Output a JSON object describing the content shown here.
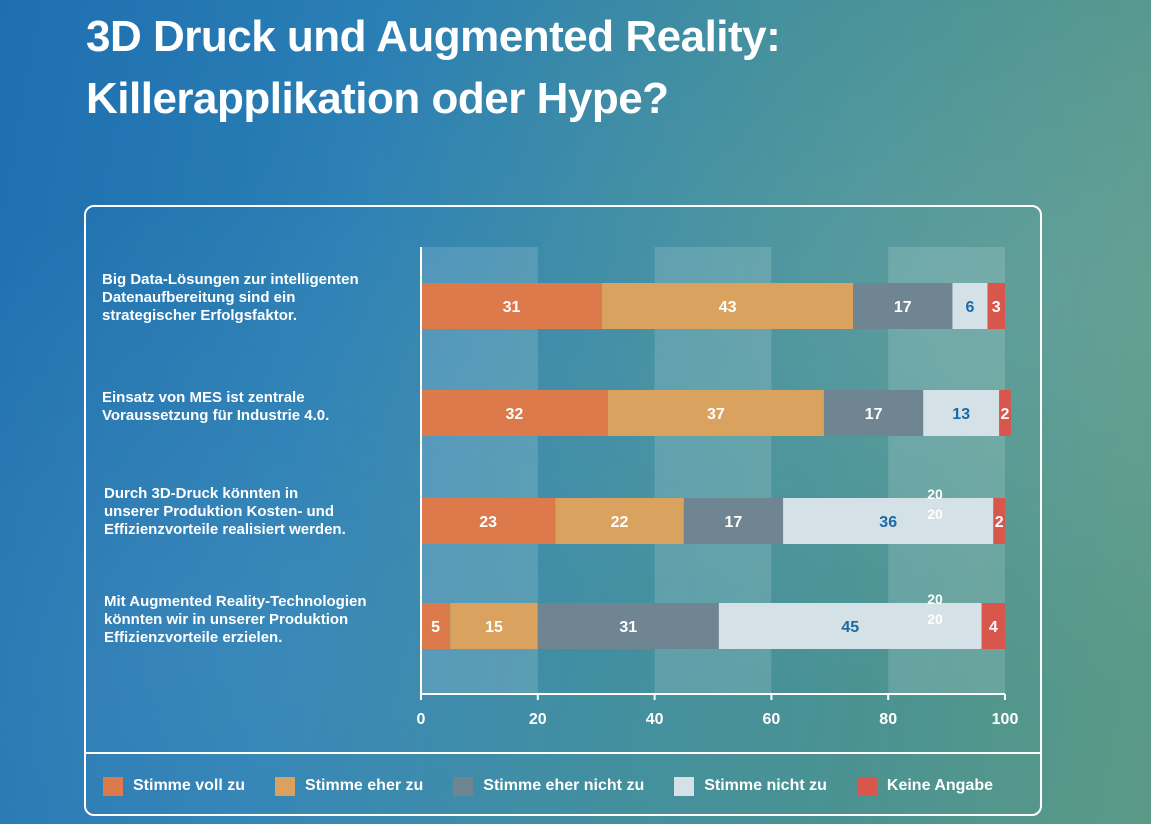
{
  "title_line1": "3D Druck und Augmented Reality:",
  "title_line2": "Killerapplikation oder Hype?",
  "questions": [
    {
      "line1": "Big Data-Lösungen zur intelligenten",
      "line2": "Datenaufbereitung sind ein",
      "line3": "strategischer Erfolgsfaktor."
    },
    {
      "line1": "Einsatz von MES ist zentrale",
      "line2": "Voraussetzung für Industrie 4.0.",
      "line3": ""
    },
    {
      "line1": "Durch 3D-Druck könnten in",
      "line2": "unserer Produktion Kosten- und",
      "line3": "Effizienzvorteile realisiert werden."
    },
    {
      "line1": "Mit Augmented Reality-Technologien",
      "line2": "könnten wir in unserer Produktion",
      "line3": "Effizienzvorteile erzielen."
    }
  ],
  "chart_data": {
    "type": "bar",
    "orientation": "horizontal",
    "stacked": true,
    "categories": [
      "Big Data-Lösungen zur intelligenten Datenaufbereitung sind ein strategischer Erfolgsfaktor.",
      "Einsatz von MES ist zentrale Voraussetzung für Industrie 4.0.",
      "Durch 3D-Druck könnten in unserer Produktion Kosten- und Effizienzvorteile realisiert werden.",
      "Mit Augmented Reality-Technologien könnten wir in unserer Produktion Effizienzvorteile erzielen."
    ],
    "series": [
      {
        "name": "Stimme voll zu",
        "values": [
          31,
          32,
          23,
          5
        ],
        "color": "#dc7a4c",
        "label_color": "#ffffff"
      },
      {
        "name": "Stimme eher zu",
        "values": [
          43,
          37,
          22,
          15
        ],
        "color": "#d9a25e",
        "label_color": "#ffffff"
      },
      {
        "name": "Stimme eher nicht zu",
        "values": [
          17,
          17,
          17,
          31
        ],
        "color": "#6f8592",
        "label_color": "#ffffff"
      },
      {
        "name": "Stimme nicht zu",
        "values": [
          6,
          13,
          36,
          45
        ],
        "color": "#d4e1e6",
        "label_color": "#1a6aa8"
      },
      {
        "name": "Keine Angabe",
        "values": [
          3,
          2,
          2,
          4
        ],
        "color": "#d9564c",
        "label_color": "#ffffff"
      }
    ],
    "stray_labels": [
      {
        "category_index": 2,
        "texts": [
          "20",
          "20"
        ]
      },
      {
        "category_index": 3,
        "texts": [
          "20",
          "20"
        ]
      }
    ],
    "xlim": [
      0,
      100
    ],
    "xticks": [
      0,
      20,
      40,
      60,
      80,
      100
    ],
    "grid_bands": [
      [
        0,
        20
      ],
      [
        40,
        60
      ],
      [
        80,
        100
      ]
    ],
    "legend_position": "bottom"
  }
}
